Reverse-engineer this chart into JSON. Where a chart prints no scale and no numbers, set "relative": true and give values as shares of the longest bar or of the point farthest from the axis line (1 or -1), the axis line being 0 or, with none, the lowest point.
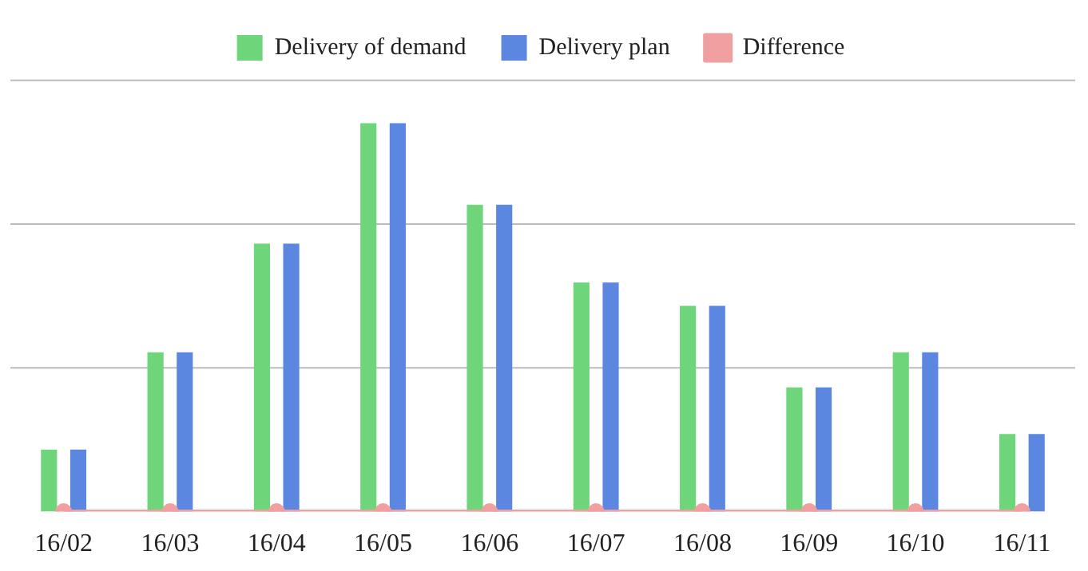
{
  "chart_data": {
    "type": "bar",
    "relative": true,
    "categories": [
      "16/02",
      "16/03",
      "16/04",
      "16/05",
      "16/06",
      "16/07",
      "16/08",
      "16/09",
      "16/10",
      "16/11"
    ],
    "series": [
      {
        "name": "Delivery of demand",
        "color": "#6fd57b",
        "values": [
          0.16,
          0.41,
          0.69,
          1,
          0.79,
          0.59,
          0.53,
          0.32,
          0.41,
          0.2
        ]
      },
      {
        "name": "Delivery plan",
        "color": "#5b87e0",
        "values": [
          0.16,
          0.41,
          0.69,
          1,
          0.79,
          0.59,
          0.53,
          0.32,
          0.41,
          0.2
        ]
      },
      {
        "name": "Difference",
        "type": "line",
        "color": "#f0a0a0",
        "values": [
          0,
          0,
          0,
          0,
          0,
          0,
          0,
          0,
          0,
          0
        ]
      }
    ],
    "ref_lines": [
      {
        "axis": "y",
        "value": 0.37,
        "color": "#bbbbbb"
      },
      {
        "axis": "y",
        "value": 0.74,
        "color": "#bbbbbb"
      },
      {
        "axis": "y",
        "value": 1.11,
        "color": "#bbbbbb"
      }
    ],
    "legend": "top",
    "marker": "circle",
    "line_style": "solid"
  }
}
